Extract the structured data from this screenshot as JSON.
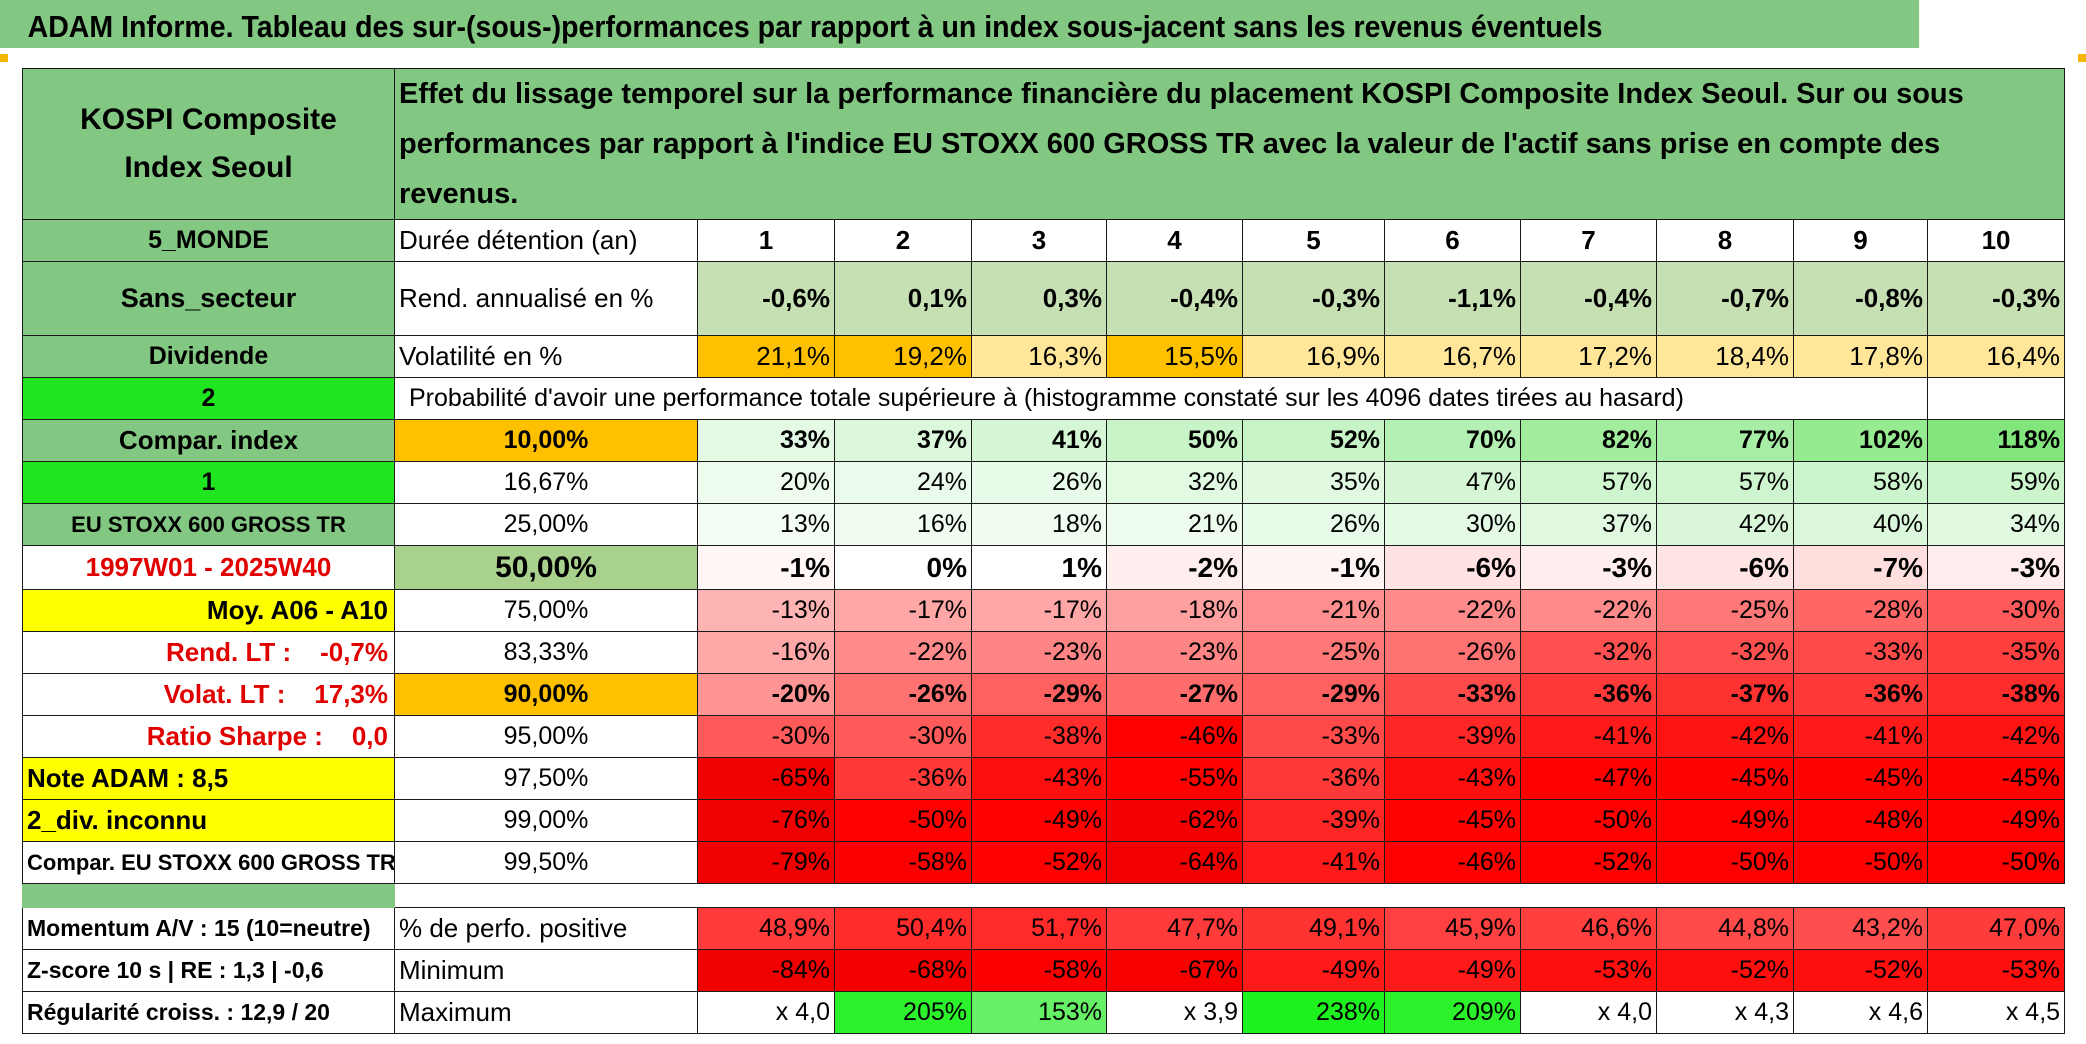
{
  "title": "ADAM Informe. Tableau des sur-(sous-)performances par rapport à un index sous-jacent sans les revenus éventuels",
  "asset_name": "KOSPI Composite Index Seoul",
  "description": "Effet du lissage temporel sur la performance financière du placement KOSPI Composite Index Seoul. Sur ou sous performances par rapport à l'indice EU STOXX 600 GROSS TR avec la valeur de l'actif sans prise en compte des revenus.",
  "left_labels": {
    "region": "5_MONDE",
    "sector": "Sans_secteur",
    "dividend": "Dividende",
    "code_2": "2",
    "compar_index": "Compar. index",
    "code_1": "1",
    "index_name": "EU STOXX 600 GROSS TR",
    "period": "1997W01 - 2025W40",
    "moy": "Moy. A06 - A10",
    "rend_lt": "Rend. LT :    -0,7%",
    "volat_lt": "Volat. LT :    17,3%",
    "sharpe": "Ratio Sharpe :    0,0",
    "note": "Note ADAM : 8,5",
    "div": "2_div. inconnu",
    "compar_full": "Compar. EU STOXX 600 GROSS TR",
    "momentum": "Momentum A/V : 15 (10=neutre)",
    "zscore": "Z-score 10 s | RE : 1,3 | -0,6",
    "regularite": "Régularité croiss. : 12,9 / 20"
  },
  "row_labels": {
    "duration": "Durée détention (an)",
    "rend": "Rend. annualisé en %",
    "vol": "Volatilité en %",
    "prob_header": "Probabilité d'avoir une performance totale supérieure à (histogramme constaté sur les 4096 dates tirées au hasard)",
    "pos": "% de perfo. positive",
    "min": "Minimum",
    "max": "Maximum"
  },
  "years": [
    "1",
    "2",
    "3",
    "4",
    "5",
    "6",
    "7",
    "8",
    "9",
    "10"
  ],
  "rend": [
    "-0,6%",
    "0,1%",
    "0,3%",
    "-0,4%",
    "-0,3%",
    "-1,1%",
    "-0,4%",
    "-0,7%",
    "-0,8%",
    "-0,3%"
  ],
  "vol": [
    "21,1%",
    "19,2%",
    "16,3%",
    "15,5%",
    "16,9%",
    "16,7%",
    "17,2%",
    "18,4%",
    "17,8%",
    "16,4%"
  ],
  "vol_colors": [
    "#ffc000",
    "#ffc000",
    "#ffe699",
    "#ffc000",
    "#ffe699",
    "#ffe699",
    "#ffe699",
    "#ffe699",
    "#ffe699",
    "#ffe699"
  ],
  "prob_rows": [
    {
      "pct": "10,00%",
      "pct_bg": "#ffc000",
      "bold": true,
      "values": [
        "33%",
        "37%",
        "41%",
        "50%",
        "52%",
        "70%",
        "82%",
        "77%",
        "102%",
        "118%"
      ],
      "colors": [
        "#e4fae4",
        "#dcf8dc",
        "#d6f7d6",
        "#c8f4c8",
        "#c6f4c6",
        "#b4f0b4",
        "#a2ec9e",
        "#a8eda6",
        "#96ea90",
        "#82e67c"
      ]
    },
    {
      "pct": "16,67%",
      "pct_bg": "#ffffff",
      "bold": false,
      "values": [
        "20%",
        "24%",
        "26%",
        "32%",
        "35%",
        "47%",
        "57%",
        "57%",
        "58%",
        "59%"
      ],
      "colors": [
        "#edfced",
        "#ebfbeb",
        "#e8fae8",
        "#e2f9e2",
        "#e0f9e0",
        "#d6f7d6",
        "#cef5ce",
        "#cef5ce",
        "#cdf5cd",
        "#ccf5cc"
      ]
    },
    {
      "pct": "25,00%",
      "pct_bg": "#ffffff",
      "bold": false,
      "values": [
        "13%",
        "16%",
        "18%",
        "21%",
        "26%",
        "30%",
        "37%",
        "42%",
        "40%",
        "34%"
      ],
      "colors": [
        "#f3fdf3",
        "#f1fcf1",
        "#effcef",
        "#edfced",
        "#e8fae8",
        "#e4fae4",
        "#dff8df",
        "#daf7da",
        "#dcf8dc",
        "#e1f9e1"
      ]
    },
    {
      "pct": "50,00%",
      "pct_bg": "#a9d18e",
      "bold": true,
      "big": true,
      "values": [
        "-1%",
        "0%",
        "1%",
        "-2%",
        "-1%",
        "-6%",
        "-3%",
        "-6%",
        "-7%",
        "-3%"
      ],
      "colors": [
        "#fff6f6",
        "#ffffff",
        "#ffffff",
        "#ffeeee",
        "#fff4f4",
        "#ffe2e2",
        "#ffeeee",
        "#ffe4e4",
        "#ffdede",
        "#ffecec"
      ]
    },
    {
      "pct": "75,00%",
      "pct_bg": "#ffffff",
      "bold": false,
      "values": [
        "-13%",
        "-17%",
        "-17%",
        "-18%",
        "-21%",
        "-22%",
        "-22%",
        "-25%",
        "-28%",
        "-30%"
      ],
      "colors": [
        "#ffb4b4",
        "#ffa6a6",
        "#ffa6a6",
        "#ffa0a0",
        "#ff8e8e",
        "#ff8a8a",
        "#ff8a8a",
        "#ff7878",
        "#ff6666",
        "#ff5a5a"
      ]
    },
    {
      "pct": "83,33%",
      "pct_bg": "#ffffff",
      "bold": false,
      "values": [
        "-16%",
        "-22%",
        "-23%",
        "-23%",
        "-25%",
        "-26%",
        "-32%",
        "-32%",
        "-33%",
        "-35%"
      ],
      "colors": [
        "#ffa8a8",
        "#ff8a8a",
        "#ff8484",
        "#ff8484",
        "#ff7878",
        "#ff7272",
        "#ff5050",
        "#ff5050",
        "#ff4a4a",
        "#ff3e3e"
      ]
    },
    {
      "pct": "90,00%",
      "pct_bg": "#ffc000",
      "bold": true,
      "values": [
        "-20%",
        "-26%",
        "-29%",
        "-27%",
        "-29%",
        "-33%",
        "-36%",
        "-37%",
        "-36%",
        "-38%"
      ],
      "colors": [
        "#ff9494",
        "#ff7272",
        "#ff6060",
        "#ff6c6c",
        "#ff6060",
        "#ff4a4a",
        "#ff3838",
        "#ff3232",
        "#ff3838",
        "#ff2c2c"
      ]
    },
    {
      "pct": "95,00%",
      "pct_bg": "#ffffff",
      "bold": false,
      "values": [
        "-30%",
        "-30%",
        "-38%",
        "-46%",
        "-33%",
        "-39%",
        "-41%",
        "-42%",
        "-41%",
        "-42%"
      ],
      "colors": [
        "#ff5a5a",
        "#ff5a5a",
        "#ff2c2c",
        "#ff0000",
        "#ff4a4a",
        "#ff2626",
        "#ff1a1a",
        "#ff1414",
        "#ff1a1a",
        "#ff1414"
      ]
    },
    {
      "pct": "97,50%",
      "pct_bg": "#ffffff",
      "bold": false,
      "values": [
        "-65%",
        "-36%",
        "-43%",
        "-55%",
        "-36%",
        "-43%",
        "-47%",
        "-45%",
        "-45%",
        "-45%"
      ],
      "colors": [
        "#f00000",
        "#ff3838",
        "#ff0e0e",
        "#ff0000",
        "#ff3838",
        "#ff0e0e",
        "#ff0000",
        "#ff0202",
        "#ff0202",
        "#ff0202"
      ]
    },
    {
      "pct": "99,00%",
      "pct_bg": "#ffffff",
      "bold": false,
      "values": [
        "-76%",
        "-50%",
        "-49%",
        "-62%",
        "-39%",
        "-45%",
        "-50%",
        "-49%",
        "-48%",
        "-49%"
      ],
      "colors": [
        "#f00000",
        "#ff0000",
        "#ff0000",
        "#f40000",
        "#ff2626",
        "#ff0202",
        "#ff0000",
        "#ff0000",
        "#ff0000",
        "#ff0000"
      ]
    },
    {
      "pct": "99,50%",
      "pct_bg": "#ffffff",
      "bold": false,
      "values": [
        "-79%",
        "-58%",
        "-52%",
        "-64%",
        "-41%",
        "-46%",
        "-52%",
        "-50%",
        "-50%",
        "-50%"
      ],
      "colors": [
        "#f00000",
        "#fa0000",
        "#ff0000",
        "#f20000",
        "#ff1a1a",
        "#ff0000",
        "#ff0000",
        "#ff0000",
        "#ff0000",
        "#ff0000"
      ]
    }
  ],
  "pos": [
    "48,9%",
    "50,4%",
    "51,7%",
    "47,7%",
    "49,1%",
    "45,9%",
    "46,6%",
    "44,8%",
    "43,2%",
    "47,0%"
  ],
  "pos_colors": [
    "#ff3a3a",
    "#ff2c2c",
    "#ff2a2a",
    "#ff3a3a",
    "#ff3232",
    "#ff4040",
    "#ff3e3e",
    "#ff4a4a",
    "#ff4e4e",
    "#ff3c3c"
  ],
  "min": [
    "-84%",
    "-68%",
    "-58%",
    "-67%",
    "-49%",
    "-49%",
    "-53%",
    "-52%",
    "-52%",
    "-53%"
  ],
  "min_colors": [
    "#f00000",
    "#f50000",
    "#fa0000",
    "#f60000",
    "#ff1a1a",
    "#ff1a1a",
    "#ff0e0e",
    "#ff0e0e",
    "#ff0e0e",
    "#ff0e0e"
  ],
  "max": [
    "x 4,0",
    "205%",
    "153%",
    "x 3,9",
    "238%",
    "209%",
    "x 4,0",
    "x 4,3",
    "x 4,6",
    "x 4,5"
  ],
  "max_colors": [
    "#ffffff",
    "#2cf22c",
    "#66f066",
    "#ffffff",
    "#1ef21e",
    "#2cf22c",
    "#ffffff",
    "#ffffff",
    "#ffffff",
    "#ffffff"
  ]
}
